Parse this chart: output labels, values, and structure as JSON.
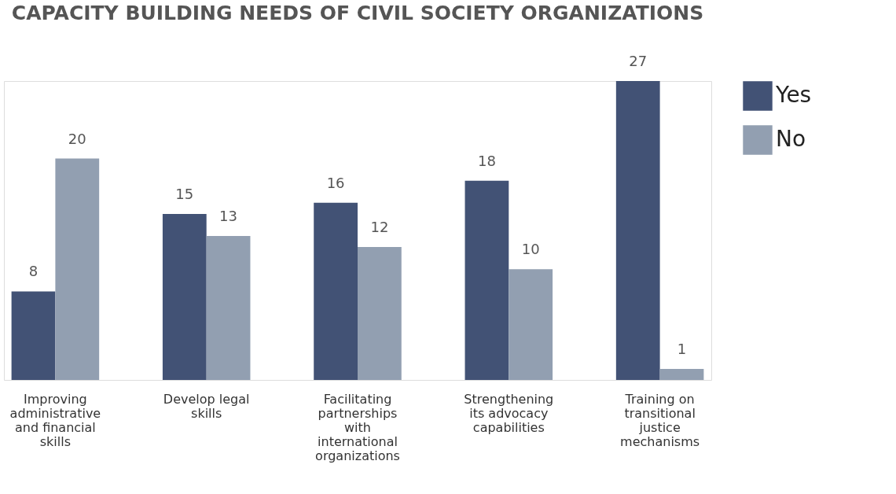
{
  "chart_data": {
    "type": "bar",
    "title": "CAPACITY BUILDING NEEDS OF CIVIL SOCIETY ORGANIZATIONS",
    "categories": [
      "Improving administrative and financial skills",
      "Develop legal skills",
      "Facilitating partnerships with international organizations",
      "Strengthening its advocacy capabilities",
      "Training on transitional justice mechanisms"
    ],
    "series": [
      {
        "name": "Yes",
        "color": "#425275",
        "values": [
          8,
          15,
          16,
          18,
          27
        ]
      },
      {
        "name": "No",
        "color": "#929fb1",
        "values": [
          20,
          13,
          12,
          10,
          1
        ]
      }
    ],
    "data_labels": true,
    "grid": false,
    "legend": "right"
  }
}
